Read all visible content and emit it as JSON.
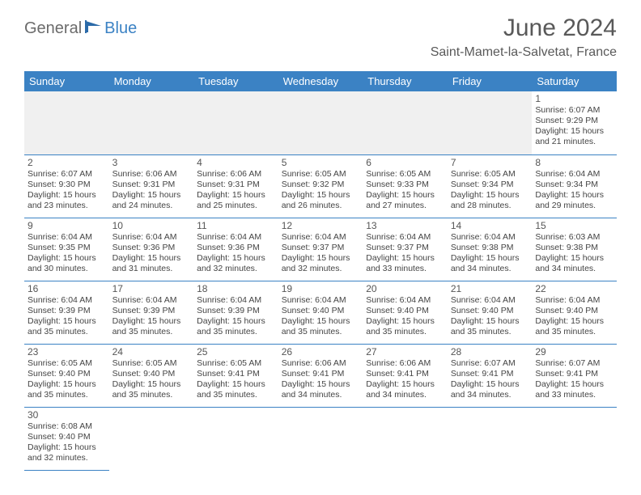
{
  "logo": {
    "part1": "General",
    "part2": "Blue"
  },
  "title": "June 2024",
  "location": "Saint-Mamet-la-Salvetat, France",
  "header_bg": "#3b82c4",
  "header_fg": "#ffffff",
  "border_color": "#3b82c4",
  "empty_bg": "#f0f0f0",
  "day_headers": [
    "Sunday",
    "Monday",
    "Tuesday",
    "Wednesday",
    "Thursday",
    "Friday",
    "Saturday"
  ],
  "weeks": [
    [
      null,
      null,
      null,
      null,
      null,
      null,
      {
        "n": "1",
        "sr": "Sunrise: 6:07 AM",
        "ss": "Sunset: 9:29 PM",
        "d1": "Daylight: 15 hours",
        "d2": "and 21 minutes."
      }
    ],
    [
      {
        "n": "2",
        "sr": "Sunrise: 6:07 AM",
        "ss": "Sunset: 9:30 PM",
        "d1": "Daylight: 15 hours",
        "d2": "and 23 minutes."
      },
      {
        "n": "3",
        "sr": "Sunrise: 6:06 AM",
        "ss": "Sunset: 9:31 PM",
        "d1": "Daylight: 15 hours",
        "d2": "and 24 minutes."
      },
      {
        "n": "4",
        "sr": "Sunrise: 6:06 AM",
        "ss": "Sunset: 9:31 PM",
        "d1": "Daylight: 15 hours",
        "d2": "and 25 minutes."
      },
      {
        "n": "5",
        "sr": "Sunrise: 6:05 AM",
        "ss": "Sunset: 9:32 PM",
        "d1": "Daylight: 15 hours",
        "d2": "and 26 minutes."
      },
      {
        "n": "6",
        "sr": "Sunrise: 6:05 AM",
        "ss": "Sunset: 9:33 PM",
        "d1": "Daylight: 15 hours",
        "d2": "and 27 minutes."
      },
      {
        "n": "7",
        "sr": "Sunrise: 6:05 AM",
        "ss": "Sunset: 9:34 PM",
        "d1": "Daylight: 15 hours",
        "d2": "and 28 minutes."
      },
      {
        "n": "8",
        "sr": "Sunrise: 6:04 AM",
        "ss": "Sunset: 9:34 PM",
        "d1": "Daylight: 15 hours",
        "d2": "and 29 minutes."
      }
    ],
    [
      {
        "n": "9",
        "sr": "Sunrise: 6:04 AM",
        "ss": "Sunset: 9:35 PM",
        "d1": "Daylight: 15 hours",
        "d2": "and 30 minutes."
      },
      {
        "n": "10",
        "sr": "Sunrise: 6:04 AM",
        "ss": "Sunset: 9:36 PM",
        "d1": "Daylight: 15 hours",
        "d2": "and 31 minutes."
      },
      {
        "n": "11",
        "sr": "Sunrise: 6:04 AM",
        "ss": "Sunset: 9:36 PM",
        "d1": "Daylight: 15 hours",
        "d2": "and 32 minutes."
      },
      {
        "n": "12",
        "sr": "Sunrise: 6:04 AM",
        "ss": "Sunset: 9:37 PM",
        "d1": "Daylight: 15 hours",
        "d2": "and 32 minutes."
      },
      {
        "n": "13",
        "sr": "Sunrise: 6:04 AM",
        "ss": "Sunset: 9:37 PM",
        "d1": "Daylight: 15 hours",
        "d2": "and 33 minutes."
      },
      {
        "n": "14",
        "sr": "Sunrise: 6:04 AM",
        "ss": "Sunset: 9:38 PM",
        "d1": "Daylight: 15 hours",
        "d2": "and 34 minutes."
      },
      {
        "n": "15",
        "sr": "Sunrise: 6:03 AM",
        "ss": "Sunset: 9:38 PM",
        "d1": "Daylight: 15 hours",
        "d2": "and 34 minutes."
      }
    ],
    [
      {
        "n": "16",
        "sr": "Sunrise: 6:04 AM",
        "ss": "Sunset: 9:39 PM",
        "d1": "Daylight: 15 hours",
        "d2": "and 35 minutes."
      },
      {
        "n": "17",
        "sr": "Sunrise: 6:04 AM",
        "ss": "Sunset: 9:39 PM",
        "d1": "Daylight: 15 hours",
        "d2": "and 35 minutes."
      },
      {
        "n": "18",
        "sr": "Sunrise: 6:04 AM",
        "ss": "Sunset: 9:39 PM",
        "d1": "Daylight: 15 hours",
        "d2": "and 35 minutes."
      },
      {
        "n": "19",
        "sr": "Sunrise: 6:04 AM",
        "ss": "Sunset: 9:40 PM",
        "d1": "Daylight: 15 hours",
        "d2": "and 35 minutes."
      },
      {
        "n": "20",
        "sr": "Sunrise: 6:04 AM",
        "ss": "Sunset: 9:40 PM",
        "d1": "Daylight: 15 hours",
        "d2": "and 35 minutes."
      },
      {
        "n": "21",
        "sr": "Sunrise: 6:04 AM",
        "ss": "Sunset: 9:40 PM",
        "d1": "Daylight: 15 hours",
        "d2": "and 35 minutes."
      },
      {
        "n": "22",
        "sr": "Sunrise: 6:04 AM",
        "ss": "Sunset: 9:40 PM",
        "d1": "Daylight: 15 hours",
        "d2": "and 35 minutes."
      }
    ],
    [
      {
        "n": "23",
        "sr": "Sunrise: 6:05 AM",
        "ss": "Sunset: 9:40 PM",
        "d1": "Daylight: 15 hours",
        "d2": "and 35 minutes."
      },
      {
        "n": "24",
        "sr": "Sunrise: 6:05 AM",
        "ss": "Sunset: 9:40 PM",
        "d1": "Daylight: 15 hours",
        "d2": "and 35 minutes."
      },
      {
        "n": "25",
        "sr": "Sunrise: 6:05 AM",
        "ss": "Sunset: 9:41 PM",
        "d1": "Daylight: 15 hours",
        "d2": "and 35 minutes."
      },
      {
        "n": "26",
        "sr": "Sunrise: 6:06 AM",
        "ss": "Sunset: 9:41 PM",
        "d1": "Daylight: 15 hours",
        "d2": "and 34 minutes."
      },
      {
        "n": "27",
        "sr": "Sunrise: 6:06 AM",
        "ss": "Sunset: 9:41 PM",
        "d1": "Daylight: 15 hours",
        "d2": "and 34 minutes."
      },
      {
        "n": "28",
        "sr": "Sunrise: 6:07 AM",
        "ss": "Sunset: 9:41 PM",
        "d1": "Daylight: 15 hours",
        "d2": "and 34 minutes."
      },
      {
        "n": "29",
        "sr": "Sunrise: 6:07 AM",
        "ss": "Sunset: 9:41 PM",
        "d1": "Daylight: 15 hours",
        "d2": "and 33 minutes."
      }
    ],
    [
      {
        "n": "30",
        "sr": "Sunrise: 6:08 AM",
        "ss": "Sunset: 9:40 PM",
        "d1": "Daylight: 15 hours",
        "d2": "and 32 minutes."
      },
      null,
      null,
      null,
      null,
      null,
      null
    ]
  ]
}
